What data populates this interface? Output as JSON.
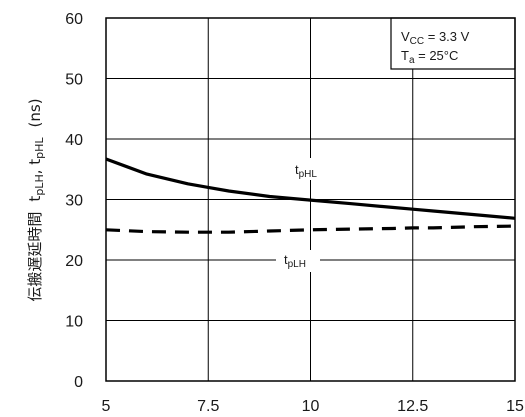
{
  "chart_data": {
    "type": "line",
    "title": "",
    "xlabel": "",
    "ylabel": "伝搬遅延時間  tpLH, tpHL  (ns)",
    "ylabel_parts": {
      "jp": "伝搬遅延時間",
      "t1": "t",
      "s1": "pLH",
      "sep": ", ",
      "t2": "t",
      "s2": "pHL",
      "unit": "(ns)"
    },
    "xlim": [
      5,
      15
    ],
    "ylim": [
      0,
      60
    ],
    "x_ticks": [
      5,
      7.5,
      10,
      12.5,
      15
    ],
    "x_tick_labels": [
      "5",
      "7.5",
      "10",
      "12.5",
      "15"
    ],
    "y_ticks": [
      0,
      10,
      20,
      30,
      40,
      50,
      60
    ],
    "y_tick_labels": [
      "0",
      "10",
      "20",
      "30",
      "40",
      "50",
      "60"
    ],
    "grid": true,
    "conditions": {
      "vcc_main": "V",
      "vcc_sub": "CC",
      "vcc_rest": " = 3.3 V",
      "ta_main": "T",
      "ta_sub": "a",
      "ta_rest": " = 25°C"
    },
    "series": [
      {
        "name": "tpHL",
        "label_main": "t",
        "label_sub": "pHL",
        "style": "solid",
        "x": [
          5,
          6,
          7,
          7.5,
          8,
          9,
          10,
          11,
          12,
          12.5,
          13,
          14,
          15
        ],
        "y": [
          36.7,
          34.2,
          32.6,
          32.0,
          31.4,
          30.5,
          29.9,
          29.3,
          28.7,
          28.4,
          28.1,
          27.5,
          26.9
        ]
      },
      {
        "name": "tpLH",
        "label_main": "t",
        "label_sub": "pLH",
        "style": "dashed",
        "x": [
          5,
          6,
          7,
          7.5,
          8,
          9,
          10,
          11,
          12,
          12.5,
          13,
          14,
          15
        ],
        "y": [
          25.0,
          24.7,
          24.6,
          24.6,
          24.6,
          24.8,
          25.0,
          25.1,
          25.2,
          25.3,
          25.3,
          25.5,
          25.6
        ]
      }
    ]
  }
}
